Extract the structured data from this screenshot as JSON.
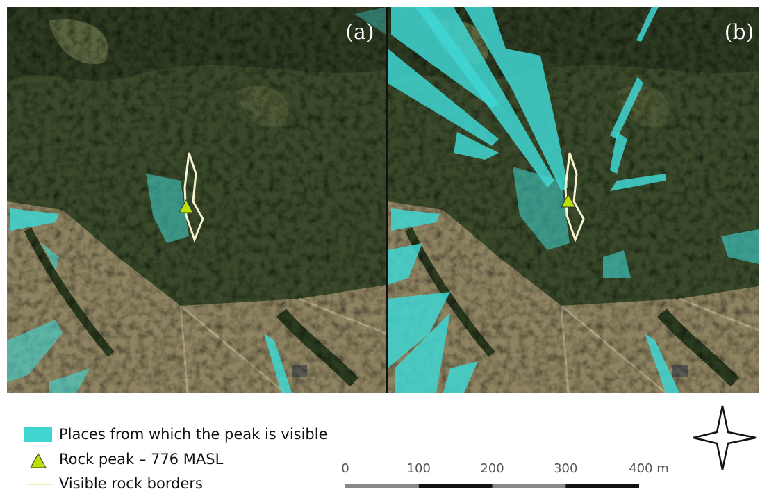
{
  "panels": [
    {
      "label": "(a)"
    },
    {
      "label": "(b)"
    }
  ],
  "legend": [
    {
      "label": "Places from which the peak is visible"
    },
    {
      "label": "Rock peak – 776 MASL"
    },
    {
      "label": "Visible rock borders"
    }
  ],
  "scale_bar": {
    "ticks": [
      {
        "value": 0,
        "label": "0"
      },
      {
        "value": 100,
        "label": "100"
      },
      {
        "value": 200,
        "label": "200"
      },
      {
        "value": 300,
        "label": "300"
      },
      {
        "value": 400,
        "label": "400 m"
      }
    ]
  }
}
